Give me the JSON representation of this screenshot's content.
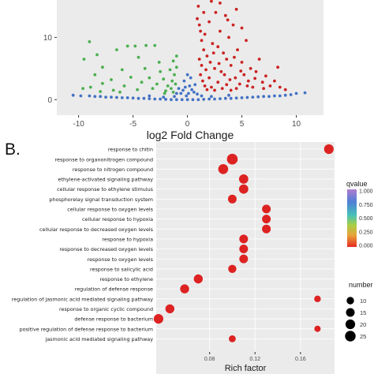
{
  "panel_b_label": "B.",
  "chart_data": [
    {
      "type": "scatter",
      "xlabel": "log2 Fold Change",
      "ylabel": "",
      "xlim": [
        -12,
        12.5
      ],
      "ylim": [
        -2.5,
        16
      ],
      "xticks": [
        -10,
        -5,
        0,
        5,
        10
      ],
      "yticks": [
        0,
        10
      ],
      "grid": false,
      "background": "#ebebeb",
      "series": [
        {
          "color": "#4472c4",
          "points": [
            [
              -10.5,
              0.7
            ],
            [
              -9.8,
              0.6
            ],
            [
              -9.0,
              0.6
            ],
            [
              -8.5,
              0.5
            ],
            [
              -8.0,
              0.5
            ],
            [
              -7.5,
              0.4
            ],
            [
              -7.0,
              0.4
            ],
            [
              -6.5,
              0.35
            ],
            [
              -6.0,
              0.3
            ],
            [
              -5.5,
              0.3
            ],
            [
              -5.0,
              0.25
            ],
            [
              -4.5,
              0.2
            ],
            [
              -4.0,
              0.2
            ],
            [
              -3.5,
              0.15
            ],
            [
              -3.0,
              0.1
            ],
            [
              -2.5,
              0.1
            ],
            [
              -2.0,
              0.05
            ],
            [
              -1.5,
              0.0
            ],
            [
              -1.0,
              0.0
            ],
            [
              -0.5,
              0.0
            ],
            [
              0.0,
              0.0
            ],
            [
              0.5,
              0.0
            ],
            [
              1.0,
              0.0
            ],
            [
              1.5,
              0.05
            ],
            [
              2.0,
              0.1
            ],
            [
              2.5,
              0.1
            ],
            [
              3.0,
              0.15
            ],
            [
              3.5,
              0.2
            ],
            [
              4.0,
              0.2
            ],
            [
              4.5,
              0.25
            ],
            [
              5.0,
              0.3
            ],
            [
              5.5,
              0.35
            ],
            [
              6.0,
              0.4
            ],
            [
              6.5,
              0.45
            ],
            [
              7.0,
              0.5
            ],
            [
              7.5,
              0.5
            ],
            [
              8.0,
              0.6
            ],
            [
              8.5,
              0.6
            ],
            [
              9.0,
              0.7
            ],
            [
              9.5,
              0.8
            ],
            [
              10.0,
              1.0
            ],
            [
              10.8,
              1.1
            ],
            [
              -0.4,
              1.5
            ],
            [
              -0.2,
              2.0
            ],
            [
              0.2,
              2.2
            ],
            [
              0.4,
              1.6
            ],
            [
              -0.6,
              1.0
            ],
            [
              0.6,
              1.2
            ],
            [
              -0.3,
              3.0
            ],
            [
              0.3,
              3.5
            ],
            [
              0.1,
              1.0
            ],
            [
              -0.1,
              0.6
            ],
            [
              -1.2,
              0.5
            ],
            [
              1.3,
              0.6
            ],
            [
              -2.2,
              0.4
            ],
            [
              2.2,
              0.5
            ],
            [
              -1.0,
              1.0
            ],
            [
              0.9,
              0.9
            ],
            [
              -0.8,
              1.8
            ],
            [
              0.7,
              2.4
            ],
            [
              0.0,
              4.0
            ],
            [
              -3.5,
              0.6
            ],
            [
              3.8,
              0.7
            ]
          ]
        },
        {
          "color": "#4caf50",
          "points": [
            [
              -9.0,
              9.3
            ],
            [
              -8.3,
              7.2
            ],
            [
              -9.5,
              6.5
            ],
            [
              -7.8,
              5.2
            ],
            [
              -8.5,
              4.0
            ],
            [
              -6.5,
              8.0
            ],
            [
              -5.5,
              8.6
            ],
            [
              -4.8,
              8.6
            ],
            [
              -3.8,
              8.7
            ],
            [
              -3.0,
              8.7
            ],
            [
              -6.0,
              4.8
            ],
            [
              -7.0,
              3.2
            ],
            [
              -5.2,
              3.6
            ],
            [
              -4.2,
              2.8
            ],
            [
              -3.5,
              3.5
            ],
            [
              -2.8,
              2.5
            ],
            [
              -2.2,
              3.3
            ],
            [
              -1.8,
              2.2
            ],
            [
              -1.4,
              3.0
            ],
            [
              -1.2,
              4.0
            ],
            [
              -1.0,
              5.2
            ],
            [
              -1.3,
              6.2
            ],
            [
              -1.0,
              7.0
            ],
            [
              -2.5,
              4.5
            ],
            [
              -3.2,
              1.8
            ],
            [
              -4.6,
              1.6
            ],
            [
              -5.8,
              2.2
            ],
            [
              -6.8,
              1.5
            ],
            [
              -7.8,
              2.6
            ],
            [
              -8.9,
              2.0
            ],
            [
              -9.6,
              1.8
            ],
            [
              -2.0,
              1.4
            ],
            [
              -1.5,
              1.8
            ],
            [
              -1.1,
              2.5
            ],
            [
              -1.6,
              4.8
            ],
            [
              -2.6,
              6.0
            ],
            [
              -3.9,
              5.0
            ],
            [
              -4.5,
              6.8
            ],
            [
              -2.1,
              1.0
            ],
            [
              -1.3,
              1.2
            ],
            [
              -8.0,
              1.3
            ],
            [
              -6.2,
              1.2
            ]
          ]
        },
        {
          "color": "#cc2222",
          "points": [
            [
              0.9,
              13.0
            ],
            [
              1.0,
              15.0
            ],
            [
              1.1,
              12.0
            ],
            [
              1.2,
              11.0
            ],
            [
              1.3,
              9.5
            ],
            [
              1.5,
              8.0
            ],
            [
              1.6,
              10.5
            ],
            [
              1.8,
              7.0
            ],
            [
              2.0,
              12.5
            ],
            [
              2.1,
              6.0
            ],
            [
              2.3,
              9.0
            ],
            [
              2.5,
              5.0
            ],
            [
              2.6,
              14.0
            ],
            [
              2.8,
              8.5
            ],
            [
              3.0,
              11.0
            ],
            [
              3.1,
              4.5
            ],
            [
              3.3,
              7.5
            ],
            [
              3.5,
              13.5
            ],
            [
              3.6,
              6.5
            ],
            [
              3.8,
              10.0
            ],
            [
              4.0,
              5.5
            ],
            [
              4.2,
              12.0
            ],
            [
              4.4,
              3.5
            ],
            [
              4.6,
              8.0
            ],
            [
              4.8,
              2.5
            ],
            [
              5.0,
              6.0
            ],
            [
              5.2,
              4.0
            ],
            [
              5.4,
              9.5
            ],
            [
              5.6,
              3.0
            ],
            [
              5.8,
              5.0
            ],
            [
              6.0,
              2.0
            ],
            [
              6.3,
              4.5
            ],
            [
              6.6,
              6.5
            ],
            [
              6.9,
              2.8
            ],
            [
              7.2,
              3.8
            ],
            [
              7.6,
              2.2
            ],
            [
              8.0,
              3.0
            ],
            [
              8.5,
              2.0
            ],
            [
              9.0,
              1.6
            ],
            [
              1.2,
              4.0
            ],
            [
              1.4,
              3.0
            ],
            [
              1.6,
              2.2
            ],
            [
              1.8,
              1.6
            ],
            [
              2.0,
              3.5
            ],
            [
              2.2,
              2.0
            ],
            [
              2.5,
              1.5
            ],
            [
              2.8,
              2.8
            ],
            [
              3.2,
              1.8
            ],
            [
              3.6,
              2.4
            ],
            [
              4.0,
              1.5
            ],
            [
              4.5,
              1.8
            ],
            [
              1.1,
              6.5
            ],
            [
              1.3,
              5.5
            ],
            [
              1.7,
              4.8
            ],
            [
              2.4,
              7.5
            ],
            [
              2.9,
              5.8
            ],
            [
              3.4,
              4.0
            ],
            [
              3.9,
              3.2
            ],
            [
              4.3,
              6.8
            ],
            [
              4.9,
              4.6
            ],
            [
              5.5,
              2.2
            ],
            [
              6.2,
              3.4
            ],
            [
              7.0,
              1.8
            ],
            [
              3.0,
              15.5
            ],
            [
              2.2,
              15.8
            ],
            [
              4.5,
              14.5
            ],
            [
              5.0,
              11.5
            ],
            [
              1.5,
              14.0
            ],
            [
              3.7,
              12.8
            ],
            [
              8.3,
              5.2
            ]
          ]
        }
      ]
    },
    {
      "type": "scatter",
      "xlabel": "Rich factor",
      "xlim": [
        0.033,
        0.19
      ],
      "xticks": [
        0.08,
        0.12,
        0.16
      ],
      "xtick_labels": [
        "0.08",
        "0.12",
        "0.16"
      ],
      "background": "#ebebeb",
      "categories": [
        "response to chitin",
        "response to organonitrogen compound",
        "response to nitrogen compound",
        "ethylene-activated signaling pathway",
        "cellular response to ethylene stimulus",
        "phosphorelay signal transduction system",
        "cellular response to oxygen levels",
        "cellular response to hypoxia",
        "cellular response to decreased oxygen levels",
        "response to hypoxia",
        "response to decreased oxygen levels",
        "response to oxygen levels",
        "response to salicylic acid",
        "response to ethylene",
        "regulation of defense response",
        "regulation of jasmonic acid mediated signaling pathway",
        "response to organic cyclic compound",
        "defense response to bacterium",
        "positive regulation of defense response to bacterium",
        "jasmonic acid mediated signaling pathway"
      ],
      "rich_factor": [
        0.185,
        0.1,
        0.092,
        0.11,
        0.11,
        0.1,
        0.13,
        0.13,
        0.13,
        0.11,
        0.11,
        0.11,
        0.1,
        0.07,
        0.058,
        0.175,
        0.045,
        0.035,
        0.175,
        0.1
      ],
      "number": [
        20,
        26,
        22,
        18,
        18,
        15,
        15,
        15,
        15,
        15,
        15,
        15,
        13,
        17,
        17,
        7,
        17,
        20,
        6,
        8
      ],
      "qvalue": [
        0,
        0,
        0,
        0,
        0,
        0,
        0,
        0,
        0,
        0,
        0,
        0,
        0,
        0,
        0,
        0,
        0,
        0,
        0,
        0
      ],
      "color_legend": {
        "title": "qvalue",
        "labels": [
          "1.000",
          "0.750",
          "0.500",
          "0.250",
          "0.000"
        ],
        "colors": [
          "#b07ccf",
          "#4f7fd6",
          "#46c2b8",
          "#a9cf45",
          "#e8a23a",
          "#e52a22"
        ]
      },
      "size_legend": {
        "title": "number",
        "labels": [
          "10",
          "15",
          "20",
          "25"
        ]
      },
      "point_color": "#dd2222"
    }
  ]
}
